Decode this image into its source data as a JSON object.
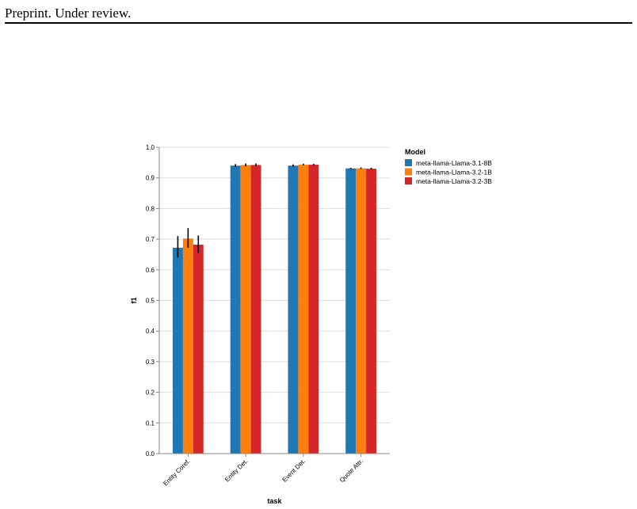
{
  "page": {
    "header": "Preprint. Under review."
  },
  "chart_data": {
    "type": "bar",
    "xlabel": "task",
    "ylabel": "f1",
    "ylim": [
      0,
      1.0
    ],
    "yticks": [
      "0.0",
      "0.1",
      "0.2",
      "0.3",
      "0.4",
      "0.5",
      "0.6",
      "0.7",
      "0.8",
      "0.9",
      "1.0"
    ],
    "grid": true,
    "legend_title": "Model",
    "legend_position": "right",
    "categories": [
      "Entity Coref.",
      "Entity Det.",
      "Event Det.",
      "Quote Attr."
    ],
    "series": [
      {
        "name": "meta-llama-Llama-3.1-8B",
        "color": "#1f77b4",
        "values": [
          0.672,
          0.94,
          0.94,
          0.931
        ],
        "err_low": [
          0.64,
          0.936,
          0.937,
          0.929
        ],
        "err_high": [
          0.71,
          0.945,
          0.944,
          0.933
        ]
      },
      {
        "name": "meta-llama-Llama-3.2-1B",
        "color": "#ff7f0e",
        "values": [
          0.702,
          0.942,
          0.943,
          0.931
        ],
        "err_low": [
          0.672,
          0.938,
          0.941,
          0.929
        ],
        "err_high": [
          0.736,
          0.947,
          0.946,
          0.934
        ]
      },
      {
        "name": "meta-llama-Llama-3.2-3B",
        "color": "#d62728",
        "values": [
          0.682,
          0.942,
          0.943,
          0.93
        ],
        "err_low": [
          0.655,
          0.939,
          0.941,
          0.928
        ],
        "err_high": [
          0.712,
          0.947,
          0.946,
          0.933
        ]
      }
    ]
  }
}
